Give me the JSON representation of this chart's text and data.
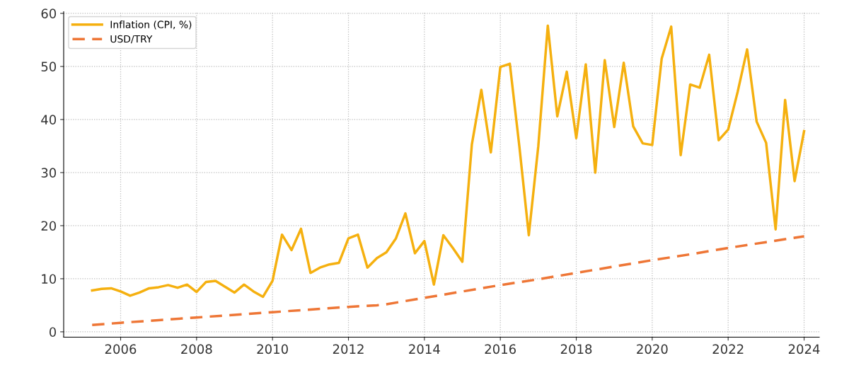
{
  "chart_data": {
    "type": "line",
    "series": [
      {
        "name": "Inflation (CPI, %)",
        "color": "#f5b00f",
        "line_style": "solid",
        "x": [
          2005.25,
          2005.5,
          2005.75,
          2006,
          2006.25,
          2006.5,
          2006.75,
          2007,
          2007.25,
          2007.5,
          2007.75,
          2008,
          2008.25,
          2008.5,
          2008.75,
          2009,
          2009.25,
          2009.5,
          2009.75,
          2010,
          2010.25,
          2010.5,
          2010.75,
          2011,
          2011.25,
          2011.5,
          2011.75,
          2012,
          2012.25,
          2012.5,
          2012.75,
          2013,
          2013.25,
          2013.5,
          2013.75,
          2014,
          2014.25,
          2014.5,
          2014.75,
          2015,
          2015.25,
          2015.5,
          2015.75,
          2016,
          2016.25,
          2016.5,
          2016.75,
          2017,
          2017.25,
          2017.5,
          2017.75,
          2018,
          2018.25,
          2018.5,
          2018.75,
          2019,
          2019.25,
          2019.5,
          2019.75,
          2020,
          2020.25,
          2020.5,
          2020.75,
          2021,
          2021.25,
          2021.5,
          2021.75,
          2022,
          2022.25,
          2022.5,
          2022.75,
          2023,
          2023.25,
          2023.5,
          2023.75,
          2024
        ],
        "values": [
          7.8,
          8.1,
          8.2,
          7.6,
          6.8,
          7.4,
          8.2,
          8.4,
          8.8,
          8.3,
          8.9,
          7.5,
          9.4,
          9.6,
          8.5,
          7.4,
          8.9,
          7.6,
          6.6,
          9.6,
          18.3,
          15.4,
          19.4,
          11.1,
          12.1,
          12.7,
          13.0,
          17.6,
          18.3,
          12.1,
          13.9,
          15.0,
          17.6,
          22.3,
          14.8,
          17.1,
          8.9,
          18.2,
          15.8,
          13.2,
          35.3,
          45.6,
          33.8,
          49.9,
          50.5,
          35.0,
          18.2,
          35.0,
          57.7,
          40.6,
          49.0,
          36.5,
          50.4,
          30.0,
          51.2,
          38.6,
          50.7,
          38.7,
          35.5,
          35.2,
          51.5,
          57.5,
          33.3,
          46.6,
          46.0,
          52.2,
          36.1,
          38.1,
          45.2,
          53.2,
          39.6,
          35.6,
          19.3,
          43.7,
          28.4,
          37.8
        ]
      },
      {
        "name": "USD/TRY",
        "color": "#ee7636",
        "line_style": "dashed",
        "x": [
          2005.25,
          2006,
          2007,
          2008,
          2009,
          2010,
          2011,
          2012,
          2012.75,
          2013,
          2014,
          2015,
          2016,
          2017,
          2018,
          2019,
          2020,
          2021,
          2022,
          2023,
          2024
        ],
        "values": [
          1.3,
          1.7,
          2.2,
          2.7,
          3.2,
          3.7,
          4.2,
          4.7,
          5.0,
          5.2,
          6.4,
          7.6,
          8.8,
          9.9,
          11.1,
          12.3,
          13.5,
          14.6,
          15.8,
          16.9,
          18.0
        ]
      }
    ],
    "xlim": [
      2004.5,
      2024.4
    ],
    "xticks": [
      2006,
      2008,
      2010,
      2012,
      2014,
      2016,
      2018,
      2020,
      2022,
      2024
    ],
    "ylim": [
      -1,
      60.3
    ],
    "yticks": [
      0,
      10,
      20,
      30,
      40,
      50,
      60
    ],
    "grid": true,
    "legend": "top left",
    "marker": "none"
  }
}
